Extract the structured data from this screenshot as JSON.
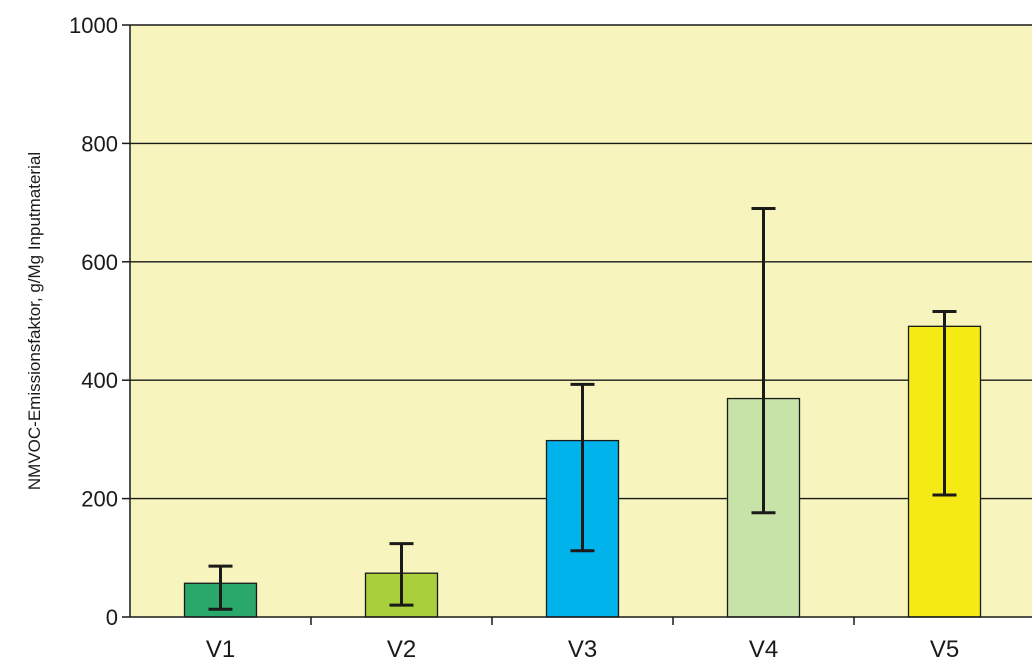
{
  "chart_data": {
    "type": "bar",
    "categories": [
      "V1",
      "V2",
      "V3",
      "V4",
      "V5"
    ],
    "values": [
      57,
      74,
      298,
      369,
      491
    ],
    "error_low": [
      13,
      20,
      112,
      176,
      206
    ],
    "error_high": [
      86,
      124,
      393,
      690,
      516
    ],
    "colors": [
      "#2aa86c",
      "#a9d03a",
      "#00b3ea",
      "#c8e3a8",
      "#f6ea14"
    ],
    "title": "",
    "xlabel": "",
    "ylabel": "NMVOC-Emissionsfaktor, g/Mg Inputmaterial",
    "ylim": [
      0,
      1000
    ],
    "yticks": [
      "0",
      "200",
      "400",
      "600",
      "800",
      "1000"
    ],
    "plot_background": "#f7f4bd",
    "grid": true
  }
}
